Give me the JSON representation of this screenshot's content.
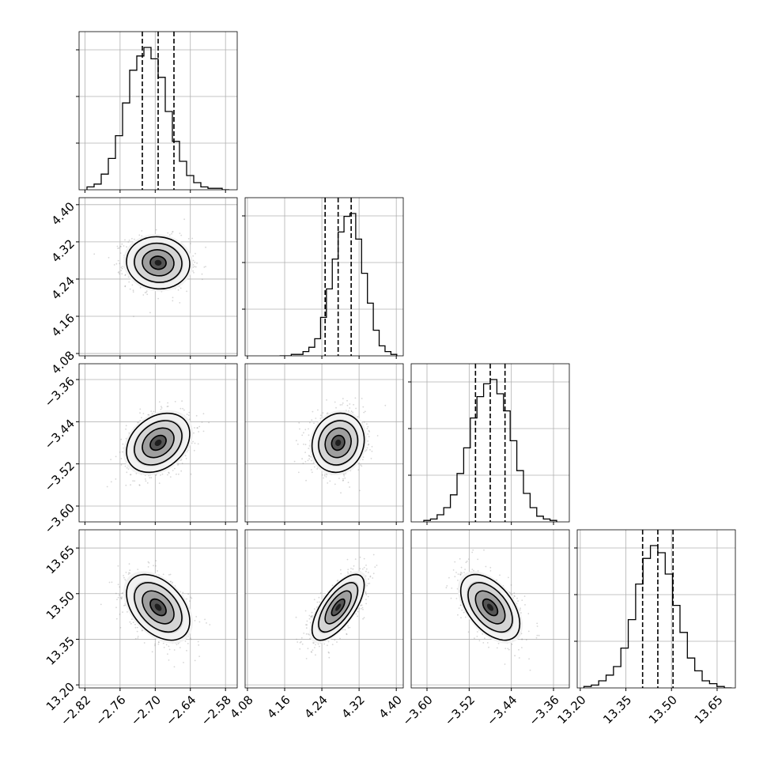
{
  "chart_data": {
    "type": "corner",
    "parameters": [
      {
        "mean": -2.695,
        "std": 0.027,
        "quantiles": [
          -2.722,
          -2.695,
          -2.668
        ],
        "range": [
          -2.83,
          -2.56
        ],
        "ticks": [
          -2.82,
          -2.76,
          -2.7,
          -2.64,
          -2.58
        ],
        "tick_labels": [
          "−2.82",
          "−2.76",
          "−2.70",
          "−2.64",
          "−2.58"
        ],
        "hist": [
          0.02,
          0.04,
          0.11,
          0.22,
          0.38,
          0.61,
          0.84,
          0.94,
          1.0,
          0.92,
          0.79,
          0.55,
          0.34,
          0.2,
          0.1,
          0.05,
          0.02,
          0.01,
          0.01,
          0.0
        ]
      },
      {
        "mean": 4.275,
        "std": 0.028,
        "quantiles": [
          4.247,
          4.275,
          4.303
        ],
        "range": [
          4.075,
          4.415
        ],
        "ticks": [
          4.08,
          4.16,
          4.24,
          4.32,
          4.4
        ],
        "tick_labels": [
          "4.08",
          "4.16",
          "4.24",
          "4.32",
          "4.40"
        ],
        "hist": [
          0.0,
          0.0,
          0.01,
          0.01,
          0.03,
          0.06,
          0.12,
          0.27,
          0.47,
          0.68,
          0.87,
          0.98,
          1.0,
          0.82,
          0.58,
          0.37,
          0.18,
          0.07,
          0.03,
          0.01
        ]
      },
      {
        "mean": -3.48,
        "std": 0.028,
        "quantiles": [
          -3.508,
          -3.48,
          -3.452
        ],
        "range": [
          -3.63,
          -3.33
        ],
        "ticks": [
          -3.6,
          -3.52,
          -3.44,
          -3.36
        ],
        "tick_labels": [
          "−3.60",
          "−3.52",
          "−3.44",
          "−3.36"
        ],
        "hist": [
          0.01,
          0.02,
          0.05,
          0.1,
          0.19,
          0.34,
          0.52,
          0.73,
          0.88,
          0.97,
          1.0,
          0.9,
          0.78,
          0.57,
          0.36,
          0.2,
          0.1,
          0.04,
          0.02,
          0.01
        ]
      },
      {
        "mean": 13.455,
        "std": 0.054,
        "quantiles": [
          13.405,
          13.455,
          13.505
        ],
        "range": [
          13.19,
          13.71
        ],
        "ticks": [
          13.2,
          13.35,
          13.5,
          13.65
        ],
        "tick_labels": [
          "13.20",
          "13.35",
          "13.50",
          "13.65"
        ],
        "hist": [
          0.01,
          0.02,
          0.05,
          0.09,
          0.15,
          0.28,
          0.48,
          0.73,
          0.91,
          1.0,
          0.95,
          0.8,
          0.58,
          0.39,
          0.21,
          0.12,
          0.05,
          0.03,
          0.01,
          0.0
        ]
      }
    ],
    "correlations": [
      [
        1.0,
        -0.05,
        0.3,
        -0.42
      ],
      [
        -0.05,
        1.0,
        0.1,
        0.68
      ],
      [
        0.3,
        0.1,
        1.0,
        -0.5
      ],
      [
        -0.42,
        0.68,
        -0.5,
        1.0
      ]
    ],
    "contour_levels_sigma": [
      0.5,
      1.0,
      1.5,
      2.0
    ],
    "grid": true,
    "quantile_lines": "dashed"
  }
}
